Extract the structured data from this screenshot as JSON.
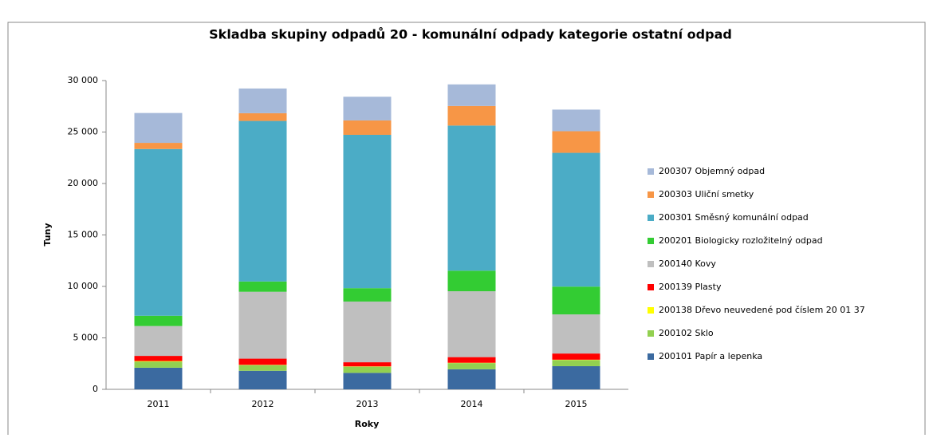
{
  "chart_data": {
    "type": "stacked_bar",
    "title": "Skladba skupiny  odpadů 20 - komunální odpady kategorie ostatní odpad",
    "x_label": "Roky",
    "y_label": "Tuny",
    "categories": [
      "2011",
      "2012",
      "2013",
      "2014",
      "2015"
    ],
    "series": [
      {
        "name": "200101 Papír a lepenka",
        "color": "#3b6aa0",
        "values": [
          2100,
          1800,
          1600,
          1950,
          2250
        ]
      },
      {
        "name": "200102 Sklo",
        "color": "#92d050",
        "values": [
          600,
          550,
          600,
          600,
          600
        ]
      },
      {
        "name": "200138 Dřevo neuvedené pod číslem 20 01 37",
        "color": "#ffff00",
        "values": [
          50,
          30,
          30,
          30,
          30
        ]
      },
      {
        "name": "200139 Plasty",
        "color": "#ff0000",
        "values": [
          500,
          600,
          400,
          550,
          600
        ]
      },
      {
        "name": "200140 Kovy",
        "color": "#bfbfbf",
        "values": [
          2900,
          6500,
          5900,
          6400,
          3800
        ]
      },
      {
        "name": "200201 Biologicky rozložitelný  odpad",
        "color": "#33cc33",
        "values": [
          1000,
          1000,
          1300,
          2000,
          2700
        ]
      },
      {
        "name": "200301 Směsný komunální  odpad",
        "color": "#4bacc6",
        "values": [
          16200,
          15600,
          14900,
          14100,
          13000
        ]
      },
      {
        "name": "200303 Uliční smetky",
        "color": "#f79646",
        "values": [
          600,
          750,
          1400,
          1900,
          2100
        ]
      },
      {
        "name": "200307 Objemný odpad",
        "color": "#a6b9d9",
        "values": [
          2900,
          2400,
          2300,
          2100,
          2100
        ]
      }
    ],
    "ylim": [
      0,
      30000
    ],
    "yticks": [
      0,
      {
        "value": 5000,
        "label": "5 000"
      },
      {
        "value": 10000,
        "label": "10 000"
      },
      {
        "value": 15000,
        "label": "15 000"
      },
      {
        "value": 20000,
        "label": "20 000"
      },
      {
        "value": 25000,
        "label": "25 000"
      },
      {
        "value": 30000,
        "label": "30 000"
      }
    ],
    "grid": false,
    "legend": "right"
  }
}
